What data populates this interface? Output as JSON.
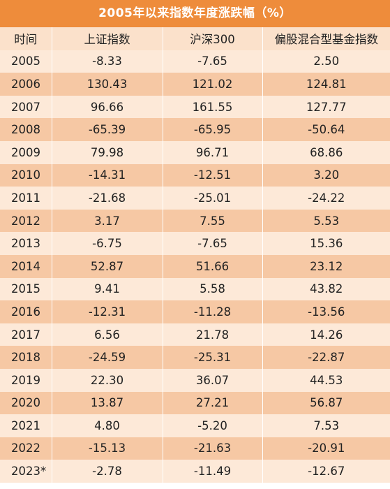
{
  "title": "2005年以来指数年度涨跌幅（%）",
  "headers": [
    "时间",
    "上证指数",
    "沪深300",
    "偏股混合型基金指数"
  ],
  "rows": [
    [
      "2005",
      "-8.33",
      "-7.65",
      "2.50"
    ],
    [
      "2006",
      "130.43",
      "121.02",
      "124.81"
    ],
    [
      "2007",
      "96.66",
      "161.55",
      "127.77"
    ],
    [
      "2008",
      "-65.39",
      "-65.95",
      "-50.64"
    ],
    [
      "2009",
      "79.98",
      "96.71",
      "68.86"
    ],
    [
      "2010",
      "-14.31",
      "-12.51",
      "3.20"
    ],
    [
      "2011",
      "-21.68",
      "-25.01",
      "-24.22"
    ],
    [
      "2012",
      "3.17",
      "7.55",
      "5.53"
    ],
    [
      "2013",
      "-6.75",
      "-7.65",
      "15.36"
    ],
    [
      "2014",
      "52.87",
      "51.66",
      "23.12"
    ],
    [
      "2015",
      "9.41",
      "5.58",
      "43.82"
    ],
    [
      "2016",
      "-12.31",
      "-11.28",
      "-13.56"
    ],
    [
      "2017",
      "6.56",
      "21.78",
      "14.26"
    ],
    [
      "2018",
      "-24.59",
      "-25.31",
      "-22.87"
    ],
    [
      "2019",
      "22.30",
      "36.07",
      "44.53"
    ],
    [
      "2020",
      "13.87",
      "27.21",
      "56.87"
    ],
    [
      "2021",
      "4.80",
      "-5.20",
      "7.53"
    ],
    [
      "2022",
      "-15.13",
      "-21.63",
      "-20.91"
    ],
    [
      "2023*",
      "-2.78",
      "-11.49",
      "-12.67"
    ]
  ],
  "colors": {
    "title_bg": "#ee8c3b",
    "header_bg": "#fbe1cb",
    "row_light": "#fde9d8",
    "row_dark": "#f6c8a4"
  }
}
